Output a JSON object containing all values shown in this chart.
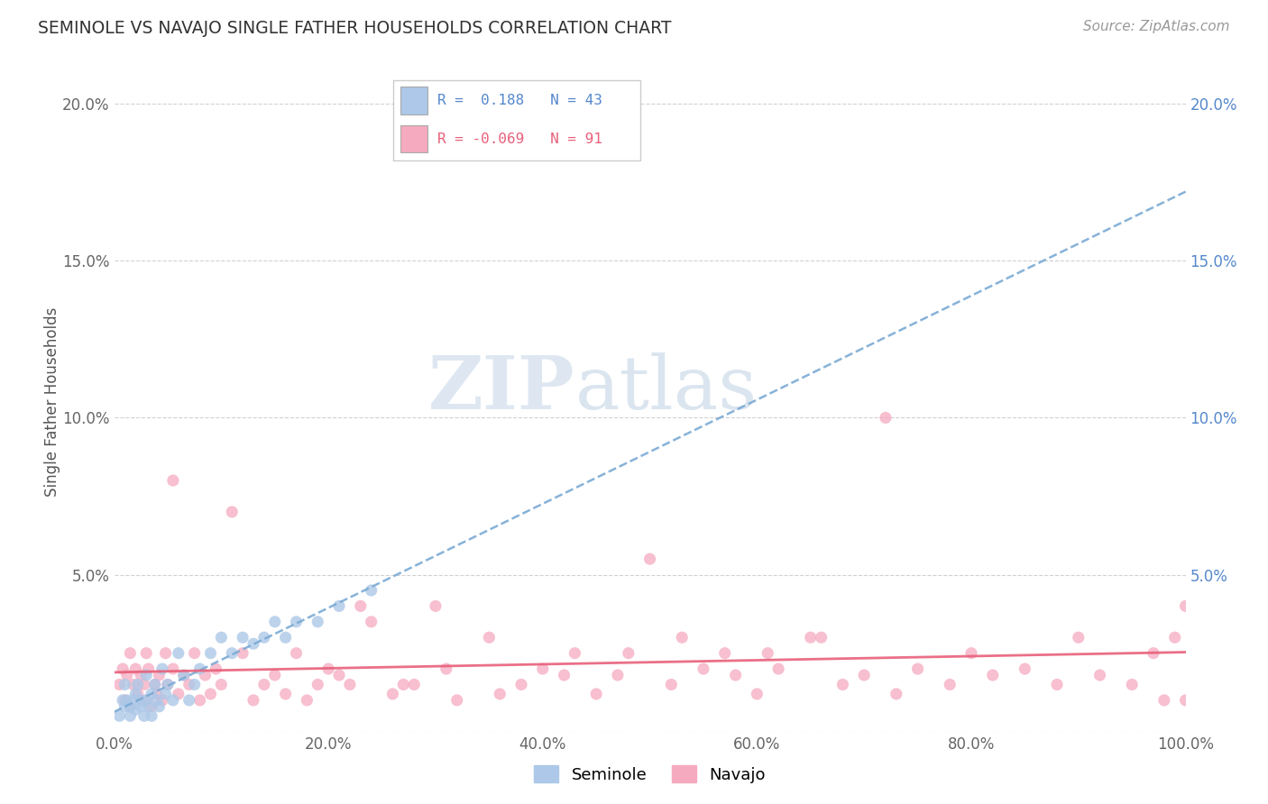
{
  "title": "SEMINOLE VS NAVAJO SINGLE FATHER HOUSEHOLDS CORRELATION CHART",
  "source": "Source: ZipAtlas.com",
  "ylabel": "Single Father Households",
  "xlim": [
    0,
    1.0
  ],
  "ylim": [
    0,
    0.21
  ],
  "legend_label1": "Seminole",
  "legend_label2": "Navajo",
  "R_seminole": 0.188,
  "N_seminole": 43,
  "R_navajo": -0.069,
  "N_navajo": 91,
  "color_seminole": "#adc8e8",
  "color_navajo": "#f5aabf",
  "color_seminole_line": "#7aaad4",
  "color_navajo_line": "#e8607a",
  "seminole_x": [
    0.005,
    0.008,
    0.01,
    0.01,
    0.012,
    0.015,
    0.015,
    0.018,
    0.02,
    0.02,
    0.022,
    0.025,
    0.025,
    0.028,
    0.03,
    0.03,
    0.032,
    0.035,
    0.035,
    0.038,
    0.04,
    0.042,
    0.045,
    0.048,
    0.05,
    0.055,
    0.06,
    0.065,
    0.07,
    0.075,
    0.08,
    0.09,
    0.1,
    0.11,
    0.12,
    0.13,
    0.14,
    0.15,
    0.16,
    0.17,
    0.19,
    0.21,
    0.24
  ],
  "seminole_y": [
    0.005,
    0.01,
    0.008,
    0.015,
    0.01,
    0.005,
    0.008,
    0.01,
    0.012,
    0.007,
    0.015,
    0.008,
    0.01,
    0.005,
    0.01,
    0.018,
    0.008,
    0.012,
    0.005,
    0.015,
    0.01,
    0.008,
    0.02,
    0.012,
    0.015,
    0.01,
    0.025,
    0.018,
    0.01,
    0.015,
    0.02,
    0.025,
    0.03,
    0.025,
    0.03,
    0.028,
    0.03,
    0.035,
    0.03,
    0.035,
    0.035,
    0.04,
    0.045
  ],
  "navajo_x": [
    0.005,
    0.008,
    0.01,
    0.012,
    0.015,
    0.015,
    0.018,
    0.02,
    0.022,
    0.025,
    0.025,
    0.028,
    0.03,
    0.03,
    0.032,
    0.035,
    0.038,
    0.04,
    0.042,
    0.045,
    0.048,
    0.05,
    0.055,
    0.055,
    0.06,
    0.065,
    0.07,
    0.075,
    0.08,
    0.085,
    0.09,
    0.095,
    0.1,
    0.11,
    0.12,
    0.13,
    0.14,
    0.15,
    0.16,
    0.17,
    0.18,
    0.19,
    0.2,
    0.21,
    0.22,
    0.23,
    0.24,
    0.26,
    0.28,
    0.3,
    0.32,
    0.35,
    0.38,
    0.4,
    0.42,
    0.45,
    0.48,
    0.5,
    0.52,
    0.55,
    0.58,
    0.6,
    0.62,
    0.65,
    0.68,
    0.7,
    0.73,
    0.75,
    0.78,
    0.8,
    0.82,
    0.85,
    0.88,
    0.9,
    0.92,
    0.95,
    0.97,
    0.98,
    0.99,
    1.0,
    1.0,
    0.27,
    0.31,
    0.36,
    0.43,
    0.47,
    0.53,
    0.57,
    0.61,
    0.66,
    0.72
  ],
  "navajo_y": [
    0.015,
    0.02,
    0.01,
    0.018,
    0.008,
    0.025,
    0.015,
    0.02,
    0.012,
    0.01,
    0.018,
    0.015,
    0.025,
    0.01,
    0.02,
    0.008,
    0.015,
    0.012,
    0.018,
    0.01,
    0.025,
    0.015,
    0.08,
    0.02,
    0.012,
    0.018,
    0.015,
    0.025,
    0.01,
    0.018,
    0.012,
    0.02,
    0.015,
    0.07,
    0.025,
    0.01,
    0.015,
    0.018,
    0.012,
    0.025,
    0.01,
    0.015,
    0.02,
    0.018,
    0.015,
    0.04,
    0.035,
    0.012,
    0.015,
    0.04,
    0.01,
    0.03,
    0.015,
    0.02,
    0.018,
    0.012,
    0.025,
    0.055,
    0.015,
    0.02,
    0.018,
    0.012,
    0.02,
    0.03,
    0.015,
    0.018,
    0.012,
    0.02,
    0.015,
    0.025,
    0.018,
    0.02,
    0.015,
    0.03,
    0.018,
    0.015,
    0.025,
    0.01,
    0.03,
    0.01,
    0.04,
    0.015,
    0.02,
    0.012,
    0.025,
    0.018,
    0.03,
    0.025,
    0.025,
    0.03,
    0.1
  ]
}
